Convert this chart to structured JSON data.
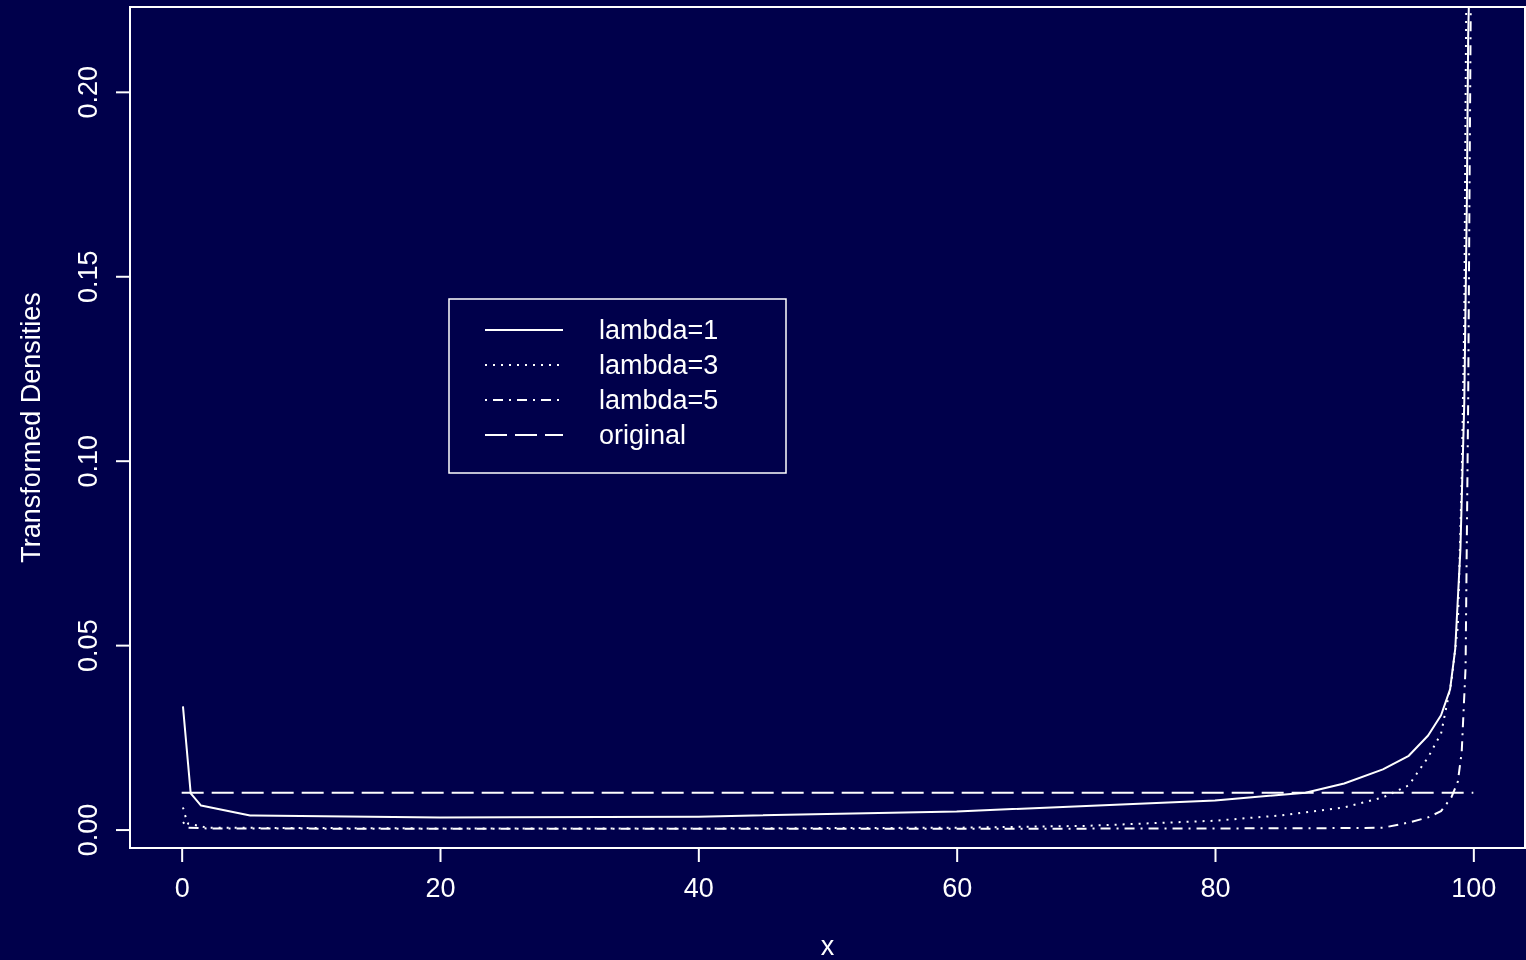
{
  "chart_data": {
    "type": "line",
    "xlabel": "x",
    "ylabel": "Transformed Densities",
    "xlim": [
      -4,
      104
    ],
    "ylim": [
      -0.005,
      0.223
    ],
    "xticks": [
      0,
      20,
      40,
      60,
      80,
      100
    ],
    "yticks": [
      {
        "value": 0,
        "label": "0.00"
      },
      {
        "value": 0.05,
        "label": "0.05"
      },
      {
        "value": 0.1,
        "label": "0.10"
      },
      {
        "value": 0.15,
        "label": "0.15"
      },
      {
        "value": 0.2,
        "label": "0.20"
      }
    ],
    "legend": "left",
    "grid": false,
    "marker": "none",
    "series": [
      {
        "name": "lambda=1",
        "color": "#ffffff",
        "line_style": "solid",
        "x": [
          0.1,
          0.7,
          1.5,
          5.3,
          20,
          40,
          60,
          80,
          87,
          90,
          93,
          95,
          96.5,
          97.5,
          98.2,
          98.6,
          99,
          99.3,
          99.5,
          99.6,
          99.65
        ],
        "values": [
          0.0334,
          0.0098,
          0.0065,
          0.0038,
          0.0033,
          0.0035,
          0.0049,
          0.0079,
          0.01,
          0.0125,
          0.0163,
          0.02,
          0.0255,
          0.031,
          0.038,
          0.049,
          0.076,
          0.116,
          0.171,
          0.215,
          0.223
        ]
      },
      {
        "name": "lambda=3",
        "color": "#ffffff",
        "line_style": "dotted",
        "x": [
          0.1,
          0.3,
          0.5,
          2,
          20,
          40,
          60,
          70,
          80,
          85,
          90,
          93,
          95,
          96.5,
          97.5,
          98.3,
          98.8,
          99.1,
          99.3,
          99.4,
          99.45
        ],
        "values": [
          0.006,
          0.0035,
          0.0016,
          0.0005,
          0.0003,
          0.0003,
          0.0005,
          0.001,
          0.0024,
          0.0038,
          0.006,
          0.0087,
          0.012,
          0.0196,
          0.026,
          0.04,
          0.055,
          0.095,
          0.14,
          0.198,
          0.223
        ]
      },
      {
        "name": "lambda=5",
        "color": "#ffffff",
        "line_style": "dashdot",
        "x": [
          0.1,
          0.5,
          2,
          20,
          40,
          60,
          80,
          90,
          93,
          95,
          96.5,
          97.5,
          98.3,
          98.8,
          99.1,
          99.4,
          99.6,
          99.7,
          99.8
        ],
        "values": [
          0.002,
          0.0005,
          0.0003,
          0.0002,
          0.0002,
          0.0002,
          0.0003,
          0.0004,
          0.0005,
          0.0019,
          0.0033,
          0.005,
          0.0087,
          0.013,
          0.021,
          0.044,
          0.116,
          0.171,
          0.223
        ]
      },
      {
        "name": "original",
        "color": "#ffffff",
        "line_style": "dashed",
        "x": [
          0,
          100
        ],
        "values": [
          0.01,
          0.01
        ]
      }
    ]
  }
}
